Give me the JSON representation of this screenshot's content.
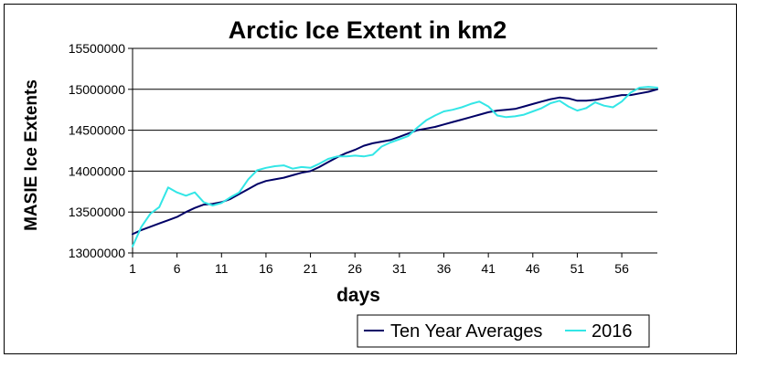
{
  "chart_data": {
    "type": "line",
    "title": "Arctic Ice Extent in km2",
    "xlabel": "days",
    "ylabel": "MASIE Ice Extents",
    "ylim": [
      13000000,
      15500000
    ],
    "xlim": [
      1,
      60
    ],
    "y_ticks": [
      13000000,
      13500000,
      14000000,
      14500000,
      15000000,
      15500000
    ],
    "y_tick_labels": [
      "13000000",
      "13500000",
      "14000000",
      "14500000",
      "15000000",
      "15500000"
    ],
    "x_ticks": [
      1,
      6,
      11,
      16,
      21,
      26,
      31,
      36,
      41,
      46,
      51,
      56
    ],
    "x_tick_labels": [
      "1",
      "6",
      "11",
      "16",
      "21",
      "26",
      "31",
      "36",
      "41",
      "46",
      "51",
      "56"
    ],
    "grid": "horizontal major",
    "legend_position": "bottom-right",
    "series": [
      {
        "name": "Ten Year Averages",
        "color": "#000066",
        "x": [
          1,
          2,
          3,
          4,
          5,
          6,
          7,
          8,
          9,
          10,
          11,
          12,
          13,
          14,
          15,
          16,
          17,
          18,
          19,
          20,
          21,
          22,
          23,
          24,
          25,
          26,
          27,
          28,
          29,
          30,
          31,
          32,
          33,
          34,
          35,
          36,
          37,
          38,
          39,
          40,
          41,
          42,
          43,
          44,
          45,
          46,
          47,
          48,
          49,
          50,
          51,
          52,
          53,
          54,
          55,
          56,
          57,
          58,
          59,
          60
        ],
        "values": [
          13230000,
          13280000,
          13320000,
          13360000,
          13400000,
          13440000,
          13500000,
          13550000,
          13590000,
          13600000,
          13620000,
          13660000,
          13720000,
          13780000,
          13840000,
          13880000,
          13900000,
          13920000,
          13950000,
          13980000,
          14000000,
          14050000,
          14110000,
          14170000,
          14220000,
          14260000,
          14310000,
          14340000,
          14360000,
          14380000,
          14420000,
          14460000,
          14500000,
          14520000,
          14540000,
          14570000,
          14600000,
          14630000,
          14660000,
          14690000,
          14720000,
          14740000,
          14750000,
          14760000,
          14790000,
          14820000,
          14850000,
          14880000,
          14900000,
          14890000,
          14860000,
          14860000,
          14870000,
          14890000,
          14910000,
          14930000,
          14930000,
          14950000,
          14970000,
          15000000
        ]
      },
      {
        "name": "2016",
        "color": "#33e6e6",
        "x": [
          1,
          2,
          3,
          4,
          5,
          6,
          7,
          8,
          9,
          10,
          11,
          12,
          13,
          14,
          15,
          16,
          17,
          18,
          19,
          20,
          21,
          22,
          23,
          24,
          25,
          26,
          27,
          28,
          29,
          30,
          31,
          32,
          33,
          34,
          35,
          36,
          37,
          38,
          39,
          40,
          41,
          42,
          43,
          44,
          45,
          46,
          47,
          48,
          49,
          50,
          51,
          52,
          53,
          54,
          55,
          56,
          57,
          58,
          59,
          60
        ],
        "values": [
          13080000,
          13320000,
          13480000,
          13560000,
          13800000,
          13740000,
          13700000,
          13740000,
          13620000,
          13580000,
          13610000,
          13680000,
          13740000,
          13900000,
          14010000,
          14040000,
          14060000,
          14070000,
          14030000,
          14050000,
          14040000,
          14090000,
          14150000,
          14180000,
          14180000,
          14190000,
          14180000,
          14200000,
          14300000,
          14350000,
          14390000,
          14430000,
          14530000,
          14620000,
          14680000,
          14730000,
          14750000,
          14780000,
          14820000,
          14850000,
          14790000,
          14680000,
          14660000,
          14670000,
          14690000,
          14730000,
          14770000,
          14830000,
          14860000,
          14790000,
          14740000,
          14770000,
          14840000,
          14800000,
          14780000,
          14850000,
          14960000,
          15020000,
          15030000,
          15020000
        ]
      }
    ]
  }
}
